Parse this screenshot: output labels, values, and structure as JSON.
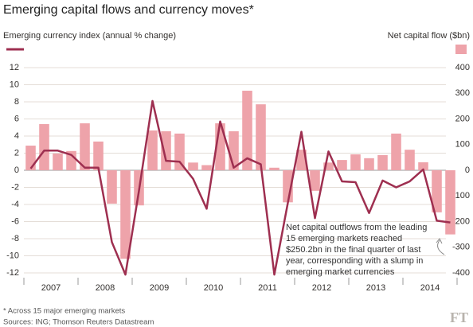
{
  "chart_data": {
    "type": "bar-line",
    "title": "Emerging capital flows and currency moves*",
    "y_label": "Emerging currency index (annual % change)",
    "y2_label": "Net capital flow ($bn)",
    "years": [
      "2007",
      "2008",
      "2009",
      "2010",
      "2011",
      "2012",
      "2013",
      "2014"
    ],
    "series": [
      {
        "name": "Net capital flow ($bn)",
        "type": "bar",
        "axis": "y2",
        "color": "#eea3aa",
        "values": [
          96,
          180,
          65,
          75,
          183,
          112,
          -130,
          -345,
          -137,
          155,
          152,
          143,
          30,
          20,
          183,
          152,
          310,
          257,
          10,
          -125,
          80,
          -80,
          30,
          40,
          62,
          47,
          59,
          143,
          80,
          31,
          -164,
          -250
        ]
      },
      {
        "name": "Emerging currency index (annual % change)",
        "type": "line",
        "axis": "y",
        "color": "#9e2f50",
        "values": [
          0.2,
          2.3,
          2.3,
          1.8,
          0.3,
          0.3,
          -8.4,
          -12.2,
          -2.4,
          8.1,
          1.1,
          1.0,
          -1.0,
          -4.5,
          5.7,
          0.3,
          1.4,
          0.7,
          -12.2,
          -3.8,
          4.5,
          -5.6,
          2.2,
          -1.3,
          -1.4,
          -5.0,
          -1.2,
          -2.0,
          -1.3,
          0.1,
          -5.9,
          -6.1
        ]
      }
    ],
    "ylim": [
      -12,
      12
    ],
    "yticks": [
      -12,
      -10,
      -8,
      -6,
      -4,
      -2,
      0,
      2,
      4,
      6,
      8,
      10,
      12
    ],
    "y2lim": [
      -400,
      400
    ],
    "y2ticks": [
      -400,
      -300,
      -200,
      -100,
      0,
      100,
      200,
      300,
      400
    ],
    "grid": true,
    "annotation": [
      "Net capital outflows from the leading",
      "15 emerging markets reached",
      "$250.2bn in the final quarter of last",
      "year, corresponding with a slump in",
      "emerging market currencies"
    ],
    "footnotes": [
      "* Across 15 major emerging markets",
      "Sources: ING; Thomson Reuters Datastream"
    ],
    "logo": "FT"
  }
}
